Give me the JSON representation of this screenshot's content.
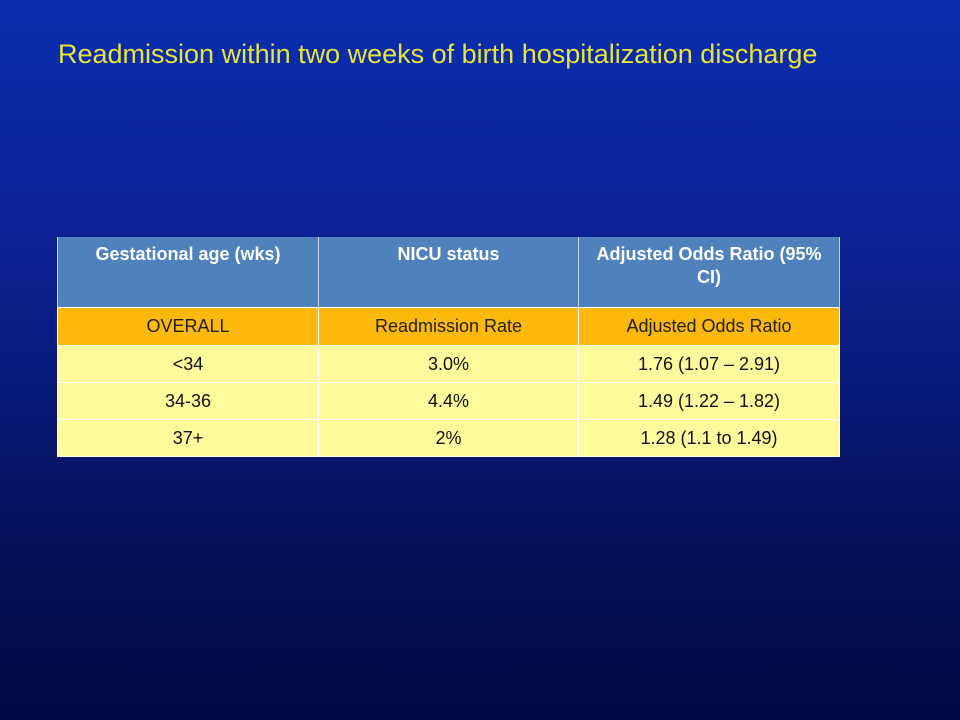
{
  "slide": {
    "title": "Readmission within two weeks of birth hospitalization discharge"
  },
  "table": {
    "headers": [
      "Gestational age (wks)",
      "NICU status",
      "Adjusted Odds Ratio (95% CI)"
    ],
    "subheader": [
      "OVERALL",
      "Readmission Rate",
      "Adjusted Odds Ratio"
    ],
    "rows": [
      [
        "<34",
        "3.0%",
        "1.76  (1.07 – 2.91)"
      ],
      [
        "34-36",
        "4.4%",
        "1.49  (1.22 – 1.82)"
      ],
      [
        "37+",
        "2%",
        "1.28  (1.1 to 1.49)"
      ]
    ]
  },
  "colors": {
    "background_top": "#0b2fb0",
    "background_bottom": "#040a45",
    "title": "#e8e23c",
    "header_fill": "#4f81bd",
    "subheader_fill": "#fdb90b",
    "row_fill": "#fffa9c"
  }
}
